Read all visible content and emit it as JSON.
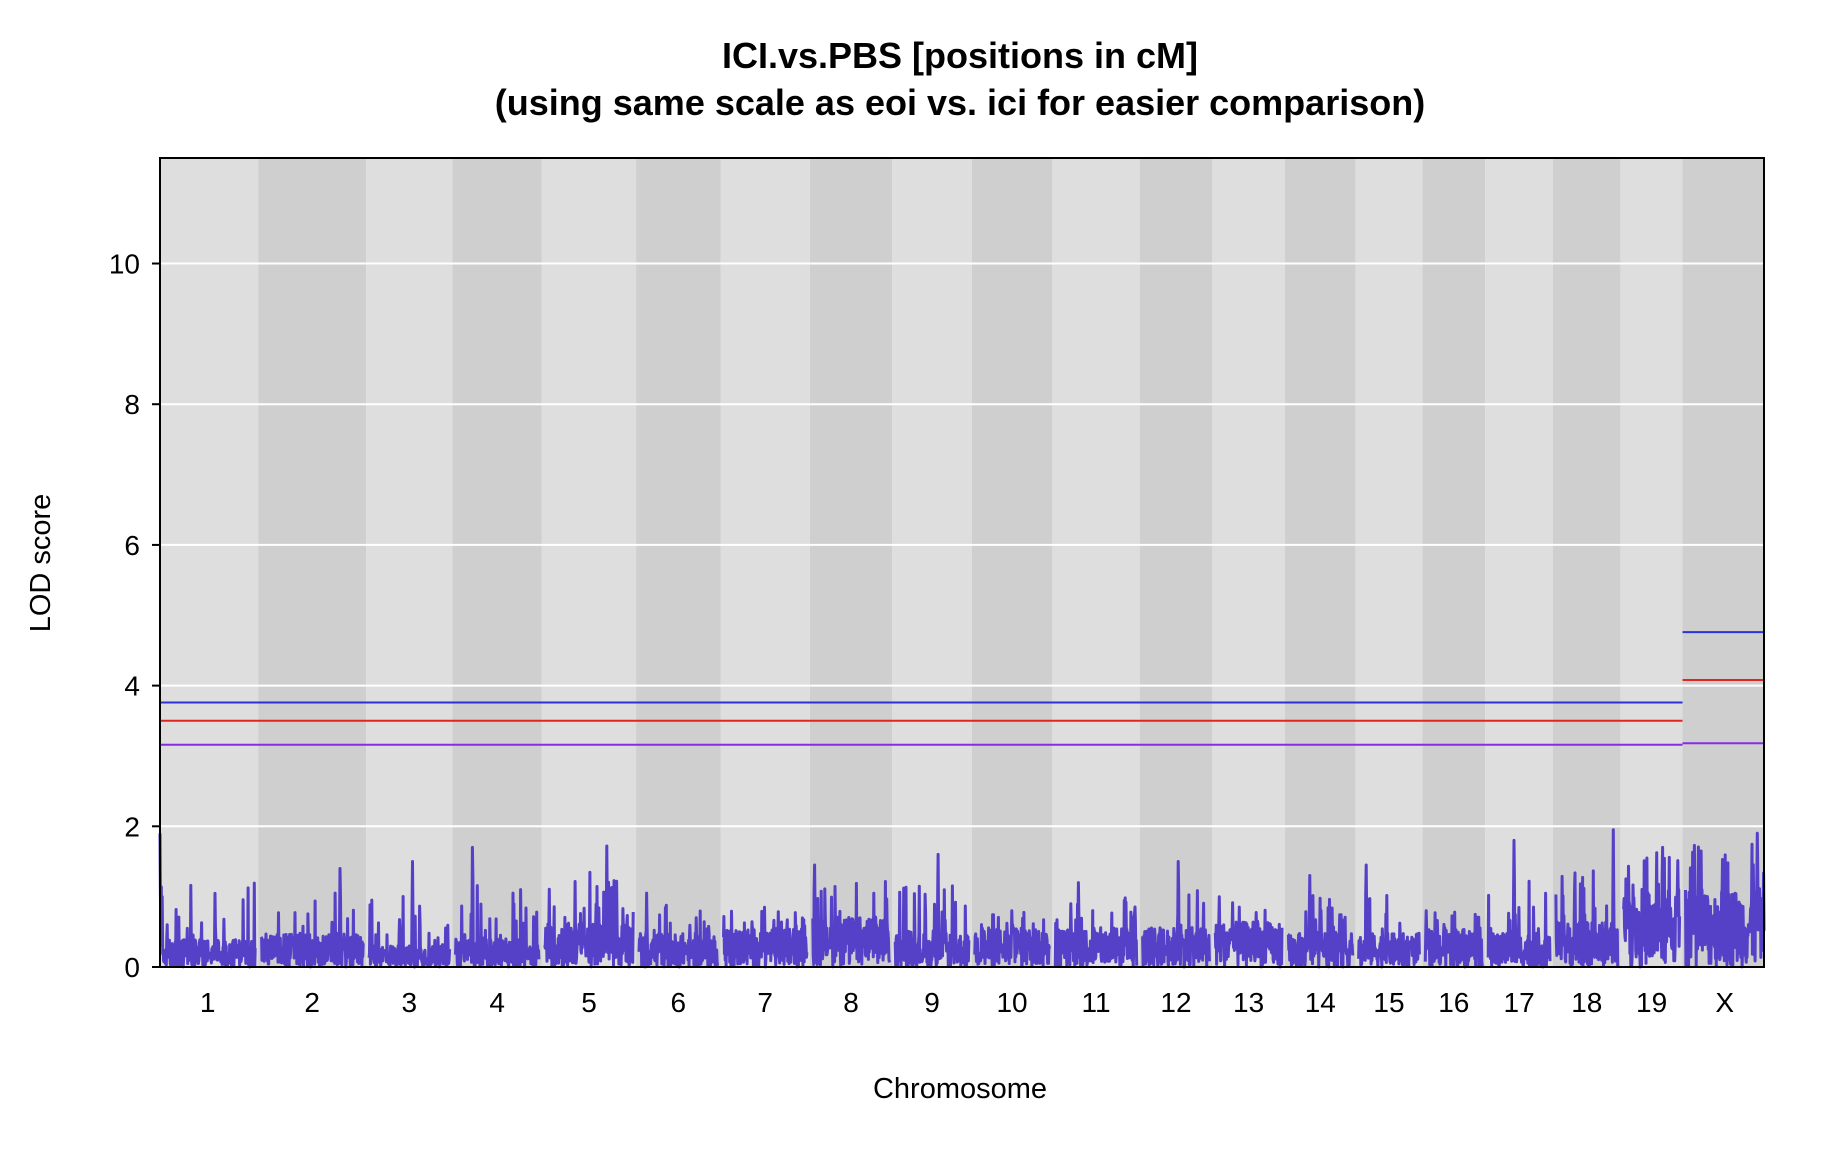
{
  "chart_data": {
    "type": "line",
    "title": "ICI.vs.PBS [positions in cM]",
    "subtitle": "(using same scale as eoi  vs. ici for easier comparison)",
    "xlabel": "Chromosome",
    "ylabel": "LOD score",
    "ylim": [
      0,
      11.5
    ],
    "yticks": [
      0,
      2,
      4,
      6,
      8,
      10
    ],
    "grid": true,
    "chromosomes": [
      "1",
      "2",
      "3",
      "4",
      "5",
      "6",
      "7",
      "8",
      "9",
      "10",
      "11",
      "12",
      "13",
      "14",
      "15",
      "16",
      "17",
      "18",
      "19",
      "X"
    ],
    "chromosome_lengths_cM": [
      97,
      104,
      82,
      85,
      90,
      80,
      85,
      78,
      75,
      76,
      83,
      68,
      68,
      66,
      62,
      58,
      63,
      63,
      57,
      80
    ],
    "peak_lod": [
      1.9,
      1.4,
      1.5,
      1.7,
      1.72,
      1.05,
      0.85,
      1.45,
      1.6,
      0.8,
      1.2,
      1.5,
      1.0,
      1.3,
      1.45,
      0.8,
      1.8,
      1.95,
      1.7,
      1.9
    ],
    "baseline_lod": [
      0.25,
      0.3,
      0.2,
      0.25,
      0.4,
      0.3,
      0.35,
      0.45,
      0.3,
      0.35,
      0.35,
      0.35,
      0.4,
      0.3,
      0.3,
      0.35,
      0.3,
      0.4,
      0.7,
      0.7
    ],
    "series": [
      {
        "name": "",
        "color": "#5540c8",
        "description_values": "LOD profile along genome"
      }
    ],
    "thresholds": {
      "autosome": {
        "blue": 3.76,
        "red": 3.5,
        "purple": 3.16
      },
      "X": {
        "blue": 4.76,
        "red": 4.08,
        "purple": 3.18
      }
    },
    "colors": {
      "band_light": "#dedede",
      "band_dark": "#cfcfcf",
      "gridline": "#ffffff",
      "lod_line": "#5540c8",
      "thr_blue": "#2b32d6",
      "thr_red": "#e0261e",
      "thr_purple": "#8a2be2"
    }
  }
}
